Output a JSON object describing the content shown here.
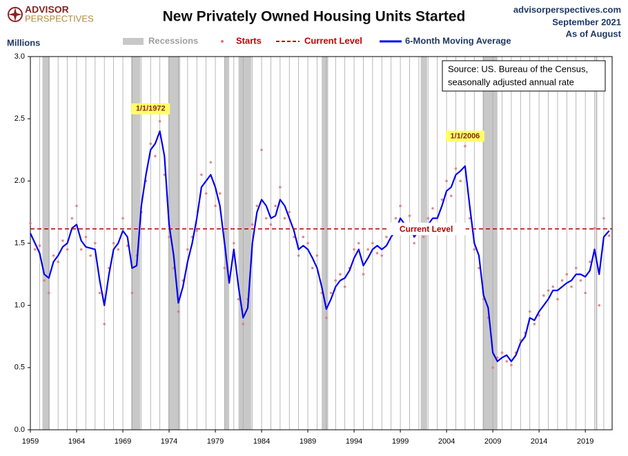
{
  "chart_data": {
    "type": "line",
    "brand": [
      "ADVISOR",
      "PERSPECTIVES"
    ],
    "title": "New Privately Owned Housing Units Started",
    "site": "advisorperspectives.com",
    "date_lines": [
      "September 2021",
      "As of August"
    ],
    "y_label": "Millions",
    "source": [
      "Source: US. Bureau of the Census,",
      "seasonally adjusted annual rate"
    ],
    "xlim": [
      1959,
      2021.9
    ],
    "xticks": [
      1959,
      1964,
      1969,
      1974,
      1979,
      1984,
      1989,
      1994,
      1999,
      2004,
      2009,
      2014,
      2019
    ],
    "minor_grid_step": 1,
    "ylim": [
      0,
      3
    ],
    "yticks": [
      {
        "value": 0,
        "label": "0.0"
      },
      0.5,
      {
        "value": 1,
        "label": "1.0"
      },
      1.5,
      {
        "value": 2,
        "label": "2.0"
      },
      2.5,
      {
        "value": 3,
        "label": "3.0"
      }
    ],
    "grid": true,
    "recessions": {
      "name": "Recessions",
      "color": "#c8c8c8",
      "ranges": [
        [
          1960.3,
          1961.1
        ],
        [
          1969.9,
          1970.9
        ],
        [
          1973.9,
          1975.2
        ],
        [
          1980.0,
          1980.5
        ],
        [
          1981.5,
          1982.9
        ],
        [
          1990.5,
          1991.2
        ],
        [
          2001.2,
          2001.9
        ],
        [
          2007.9,
          2009.5
        ],
        [
          2020.1,
          2020.3
        ]
      ]
    },
    "reference_line": {
      "name": "Current Level",
      "value": 1.615,
      "color": "#b00000"
    },
    "annotations": [
      {
        "text": "1/1/1972",
        "x": 1972,
        "y": 2.58
      },
      {
        "text": "1/1/2006",
        "x": 2006,
        "y": 2.36
      }
    ],
    "x": [
      1959.0,
      1959.5,
      1960.0,
      1960.5,
      1961.0,
      1961.5,
      1962.0,
      1962.5,
      1963.0,
      1963.5,
      1964.0,
      1964.5,
      1965.0,
      1965.5,
      1966.0,
      1966.5,
      1967.0,
      1967.5,
      1968.0,
      1968.5,
      1969.0,
      1969.5,
      1970.0,
      1970.5,
      1971.0,
      1971.5,
      1972.0,
      1972.5,
      1973.0,
      1973.5,
      1974.0,
      1974.5,
      1975.0,
      1975.5,
      1976.0,
      1976.5,
      1977.0,
      1977.5,
      1978.0,
      1978.5,
      1979.0,
      1979.5,
      1980.0,
      1980.5,
      1981.0,
      1981.5,
      1982.0,
      1982.5,
      1983.0,
      1983.5,
      1984.0,
      1984.5,
      1985.0,
      1985.5,
      1986.0,
      1986.5,
      1987.0,
      1987.5,
      1988.0,
      1988.5,
      1989.0,
      1989.5,
      1990.0,
      1990.5,
      1991.0,
      1991.5,
      1992.0,
      1992.5,
      1993.0,
      1993.5,
      1994.0,
      1994.5,
      1995.0,
      1995.5,
      1996.0,
      1996.5,
      1997.0,
      1997.5,
      1998.0,
      1998.5,
      1999.0,
      1999.5,
      2000.0,
      2000.5,
      2001.0,
      2001.5,
      2002.0,
      2002.5,
      2003.0,
      2003.5,
      2004.0,
      2004.5,
      2005.0,
      2005.5,
      2006.0,
      2006.5,
      2007.0,
      2007.5,
      2008.0,
      2008.5,
      2009.0,
      2009.5,
      2010.0,
      2010.5,
      2011.0,
      2011.5,
      2012.0,
      2012.5,
      2013.0,
      2013.5,
      2014.0,
      2014.5,
      2015.0,
      2015.5,
      2016.0,
      2016.5,
      2017.0,
      2017.5,
      2018.0,
      2018.5,
      2019.0,
      2019.5,
      2020.0,
      2020.5,
      2021.0,
      2021.58
    ],
    "series": [
      {
        "name": "Starts",
        "kind": "scatter",
        "color": "#e07575",
        "values": [
          1.66,
          1.45,
          1.48,
          1.2,
          1.1,
          1.4,
          1.35,
          1.52,
          1.45,
          1.7,
          1.8,
          1.45,
          1.55,
          1.4,
          1.5,
          1.1,
          0.85,
          1.3,
          1.5,
          1.45,
          1.7,
          1.48,
          1.1,
          1.4,
          1.75,
          2.0,
          2.3,
          2.2,
          2.48,
          2.05,
          1.55,
          1.3,
          0.95,
          1.2,
          1.45,
          1.55,
          1.6,
          2.05,
          1.9,
          2.15,
          1.8,
          1.9,
          1.3,
          1.2,
          1.5,
          1.05,
          0.85,
          1.05,
          1.65,
          1.8,
          2.25,
          1.7,
          1.65,
          1.8,
          1.95,
          1.7,
          1.75,
          1.55,
          1.4,
          1.55,
          1.5,
          1.3,
          1.4,
          1.1,
          0.9,
          1.1,
          1.2,
          1.25,
          1.15,
          1.3,
          1.45,
          1.5,
          1.25,
          1.45,
          1.5,
          1.42,
          1.4,
          1.55,
          1.6,
          1.7,
          1.8,
          1.6,
          1.72,
          1.5,
          1.62,
          1.55,
          1.7,
          1.78,
          1.62,
          1.85,
          2.0,
          1.88,
          2.1,
          2.0,
          2.28,
          1.7,
          1.45,
          1.3,
          1.05,
          0.9,
          0.5,
          0.58,
          0.62,
          0.55,
          0.52,
          0.62,
          0.72,
          0.78,
          0.95,
          0.85,
          0.92,
          1.08,
          1.12,
          1.15,
          1.05,
          1.2,
          1.25,
          1.15,
          1.3,
          1.2,
          1.1,
          1.35,
          1.62,
          1.0,
          1.7,
          1.56
        ]
      },
      {
        "name": "6-Month Moving Average",
        "kind": "line",
        "color": "#0000ee",
        "values": [
          1.58,
          1.5,
          1.42,
          1.25,
          1.22,
          1.35,
          1.4,
          1.47,
          1.5,
          1.62,
          1.65,
          1.52,
          1.47,
          1.46,
          1.45,
          1.2,
          1.0,
          1.25,
          1.45,
          1.5,
          1.6,
          1.55,
          1.3,
          1.32,
          1.8,
          2.05,
          2.25,
          2.3,
          2.4,
          2.2,
          1.65,
          1.4,
          1.02,
          1.15,
          1.35,
          1.5,
          1.7,
          1.95,
          2.0,
          2.05,
          1.95,
          1.8,
          1.5,
          1.18,
          1.45,
          1.15,
          0.9,
          0.98,
          1.5,
          1.75,
          1.85,
          1.8,
          1.7,
          1.72,
          1.85,
          1.8,
          1.7,
          1.6,
          1.45,
          1.48,
          1.45,
          1.38,
          1.3,
          1.15,
          0.97,
          1.05,
          1.15,
          1.2,
          1.22,
          1.28,
          1.38,
          1.45,
          1.32,
          1.38,
          1.45,
          1.48,
          1.45,
          1.48,
          1.55,
          1.6,
          1.7,
          1.65,
          1.65,
          1.55,
          1.6,
          1.6,
          1.65,
          1.7,
          1.7,
          1.8,
          1.92,
          1.95,
          2.05,
          2.08,
          2.12,
          1.8,
          1.5,
          1.4,
          1.08,
          0.98,
          0.62,
          0.55,
          0.58,
          0.6,
          0.55,
          0.6,
          0.7,
          0.75,
          0.9,
          0.88,
          0.95,
          1.0,
          1.05,
          1.12,
          1.12,
          1.15,
          1.18,
          1.2,
          1.25,
          1.25,
          1.23,
          1.28,
          1.45,
          1.25,
          1.55,
          1.6
        ]
      }
    ]
  }
}
